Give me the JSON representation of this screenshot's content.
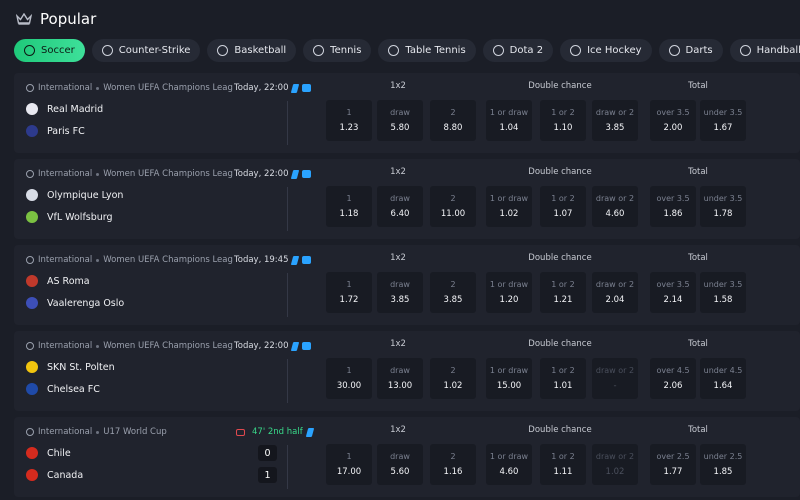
{
  "header": {
    "title": "Popular"
  },
  "tabs": [
    "Soccer",
    "Counter-Strike",
    "Basketball",
    "Tennis",
    "Table Tennis",
    "Dota 2",
    "Ice Hockey",
    "Darts",
    "Handball"
  ],
  "matches": [
    {
      "region": "International",
      "league": "Women UEFA Champions League",
      "time": "Today, 22:00",
      "teams": [
        "Real Madrid",
        "Paris FC"
      ],
      "markets": [
        "1x2",
        "Double chance",
        "Total"
      ],
      "odds": [
        {
          "label": "1",
          "value": "1.23"
        },
        {
          "label": "draw",
          "value": "5.80"
        },
        {
          "label": "2",
          "value": "8.80"
        },
        {
          "label": "1 or draw",
          "value": "1.04"
        },
        {
          "label": "1 or 2",
          "value": "1.10"
        },
        {
          "label": "draw or 2",
          "value": "3.85"
        },
        {
          "label": "over 3.5",
          "value": "2.00"
        },
        {
          "label": "under 3.5",
          "value": "1.67"
        }
      ]
    },
    {
      "region": "International",
      "league": "Women UEFA Champions League",
      "time": "Today, 22:00",
      "teams": [
        "Olympique Lyon",
        "VfL Wolfsburg"
      ],
      "markets": [
        "1x2",
        "Double chance",
        "Total"
      ],
      "odds": [
        {
          "label": "1",
          "value": "1.18"
        },
        {
          "label": "draw",
          "value": "6.40"
        },
        {
          "label": "2",
          "value": "11.00"
        },
        {
          "label": "1 or draw",
          "value": "1.02"
        },
        {
          "label": "1 or 2",
          "value": "1.07"
        },
        {
          "label": "draw or 2",
          "value": "4.60"
        },
        {
          "label": "over 3.5",
          "value": "1.86"
        },
        {
          "label": "under 3.5",
          "value": "1.78"
        }
      ]
    },
    {
      "region": "International",
      "league": "Women UEFA Champions League",
      "time": "Today, 19:45",
      "teams": [
        "AS Roma",
        "Vaalerenga Oslo"
      ],
      "markets": [
        "1x2",
        "Double chance",
        "Total"
      ],
      "odds": [
        {
          "label": "1",
          "value": "1.72"
        },
        {
          "label": "draw",
          "value": "3.85"
        },
        {
          "label": "2",
          "value": "3.85"
        },
        {
          "label": "1 or draw",
          "value": "1.20"
        },
        {
          "label": "1 or 2",
          "value": "1.21"
        },
        {
          "label": "draw or 2",
          "value": "2.04"
        },
        {
          "label": "over 3.5",
          "value": "2.14"
        },
        {
          "label": "under 3.5",
          "value": "1.58"
        }
      ]
    },
    {
      "region": "International",
      "league": "Women UEFA Champions League",
      "time": "Today, 22:00",
      "teams": [
        "SKN St. Polten",
        "Chelsea FC"
      ],
      "markets": [
        "1x2",
        "Double chance",
        "Total"
      ],
      "odds": [
        {
          "label": "1",
          "value": "30.00"
        },
        {
          "label": "draw",
          "value": "13.00"
        },
        {
          "label": "2",
          "value": "1.02"
        },
        {
          "label": "1 or draw",
          "value": "15.00"
        },
        {
          "label": "1 or 2",
          "value": "1.01"
        },
        {
          "label": "draw or 2",
          "value": "-",
          "disabled": true
        },
        {
          "label": "over 4.5",
          "value": "2.06"
        },
        {
          "label": "under 4.5",
          "value": "1.64"
        }
      ]
    },
    {
      "region": "International",
      "league": "U17 World Cup",
      "status": "47' 2nd half",
      "teams": [
        "Chile",
        "Canada"
      ],
      "scores": [
        "0",
        "1"
      ],
      "markets": [
        "1x2",
        "Double chance",
        "Total"
      ],
      "odds": [
        {
          "label": "1",
          "value": "17.00"
        },
        {
          "label": "draw",
          "value": "5.60"
        },
        {
          "label": "2",
          "value": "1.16"
        },
        {
          "label": "1 or draw",
          "value": "4.60"
        },
        {
          "label": "1 or 2",
          "value": "1.11"
        },
        {
          "label": "draw or 2",
          "value": "1.02",
          "disabled": true
        },
        {
          "label": "over 2.5",
          "value": "1.77"
        },
        {
          "label": "under 2.5",
          "value": "1.85"
        }
      ]
    }
  ]
}
